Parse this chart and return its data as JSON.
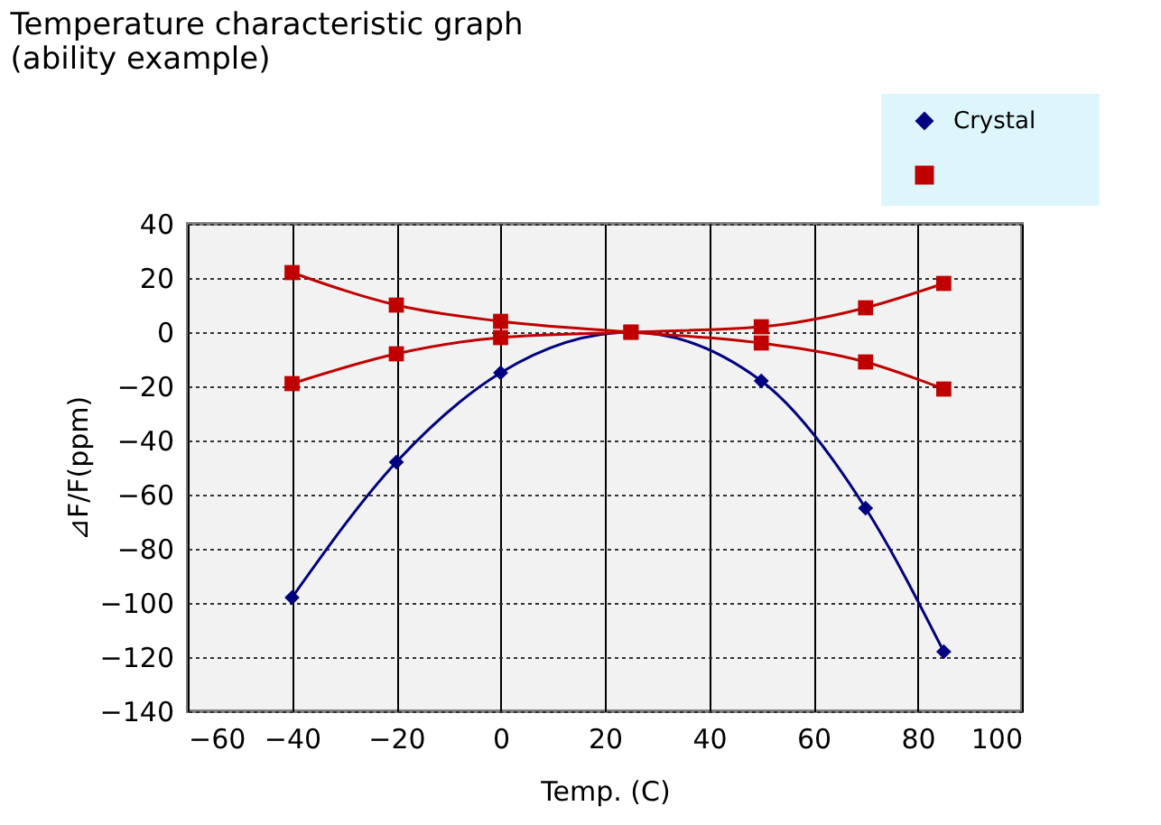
{
  "chart_data": {
    "type": "line",
    "title": "Temperature characteristic graph\n(ability example)",
    "xlabel": "Temp. (C)",
    "ylabel": "⊿F/F(ppm)",
    "xlim": [
      -60,
      100
    ],
    "xticks": [
      -60,
      -40,
      -20,
      0,
      20,
      40,
      60,
      80,
      100
    ],
    "ylim": [
      -140,
      40
    ],
    "yticks": [
      -140,
      -120,
      -100,
      -80,
      -60,
      -40,
      -20,
      0,
      20,
      40
    ],
    "grid": true,
    "legend": "top right",
    "series": [
      {
        "name": "Crystal",
        "color": "#000080",
        "marker": "diamond",
        "x": [
          -40,
          -20,
          0,
          25,
          50,
          70,
          85
        ],
        "values": [
          -98,
          -48,
          -15,
          0,
          -18,
          -65,
          -118
        ]
      },
      {
        "color": "#c00000",
        "marker": "square",
        "x": [
          -40,
          -20,
          0,
          25,
          50,
          70,
          85
        ],
        "values": [
          22,
          10,
          4,
          0,
          -4,
          -11,
          -21
        ]
      },
      {
        "color": "#c00000",
        "marker": "square",
        "x": [
          -40,
          -20,
          0,
          25,
          50,
          70,
          85
        ],
        "values": [
          -19,
          -8,
          -2,
          0,
          2,
          9,
          18
        ]
      }
    ]
  }
}
